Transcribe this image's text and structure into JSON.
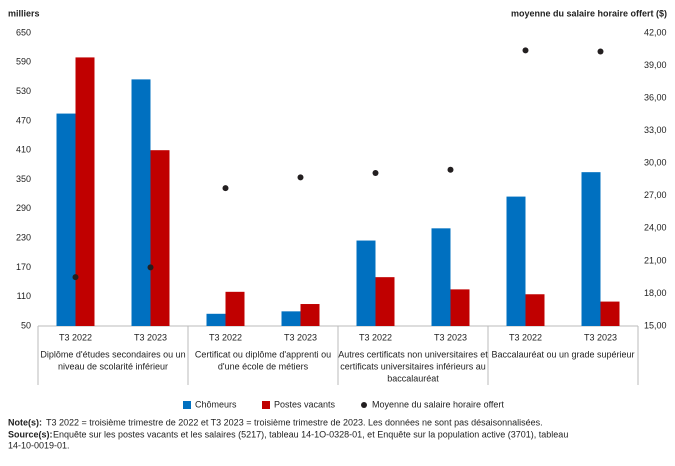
{
  "chart_data": {
    "type": "bar",
    "y_label": "milliers",
    "y2_label": "moyenne du salaire horaire offert ($)",
    "categories": [
      "T3 2022",
      "T3 2023",
      "T3 2022",
      "T3 2023",
      "T3 2022",
      "T3 2023",
      "T3 2022",
      "T3 2023"
    ],
    "groups": [
      {
        "label": [
          "Diplôme d'études secondaires ou un",
          "niveau de scolarité inférieur"
        ]
      },
      {
        "label": [
          "Certificat ou diplôme d'apprenti ou",
          "d'une école de métiers"
        ]
      },
      {
        "label": [
          "Autres certificats non universitaires et",
          "certificats universitaires inférieurs au",
          "baccalauréat"
        ]
      },
      {
        "label": [
          "Baccalauréat ou un grade supérieur"
        ]
      }
    ],
    "series": [
      {
        "name": "Chômeurs",
        "color": "#0070c0",
        "values": [
          485,
          555,
          75,
          80,
          225,
          250,
          315,
          365
        ]
      },
      {
        "name": "Postes vacants",
        "color": "#c00000",
        "values": [
          600,
          410,
          120,
          95,
          150,
          125,
          115,
          100
        ]
      },
      {
        "name": "Moyenne du salaire horaire offert",
        "type": "scatter",
        "axis": "y2",
        "color": "#231f20",
        "values": [
          19.5,
          20.4,
          27.7,
          28.7,
          29.1,
          29.4,
          40.4,
          40.3
        ]
      }
    ],
    "ylim": [
      50,
      650
    ],
    "yticks": [
      50,
      110,
      170,
      230,
      290,
      350,
      410,
      470,
      530,
      590,
      650
    ],
    "y2lim": [
      15,
      42
    ],
    "y2ticks": [
      {
        "value": 15,
        "label": "15,00"
      },
      {
        "value": 18,
        "label": "18,00"
      },
      {
        "value": 21,
        "label": "21,00"
      },
      {
        "value": 24,
        "label": "24,00"
      },
      {
        "value": 27,
        "label": "27,00"
      },
      {
        "value": 30,
        "label": "30,00"
      },
      {
        "value": 33,
        "label": "33,00"
      },
      {
        "value": 36,
        "label": "36,00"
      },
      {
        "value": 39,
        "label": "39,00"
      },
      {
        "value": 42,
        "label": "42,00"
      }
    ],
    "grid": false,
    "legend": "bottom",
    "notes": {
      "label": "Note(s):",
      "lines": [
        "T3 2022 = troisième trimestre de 2022 et T3 2023 = troisième trimestre de 2023.  Les données ne sont pas désaisonnalisées."
      ]
    },
    "sources": {
      "label": "Source(s):",
      "lines": [
        "Enquête sur les postes vacants et les salaires (5217), tableau 14-1O-0328-01, et Enquête sur la population active (3701), tableau",
        "14-10-0019-01."
      ]
    }
  }
}
